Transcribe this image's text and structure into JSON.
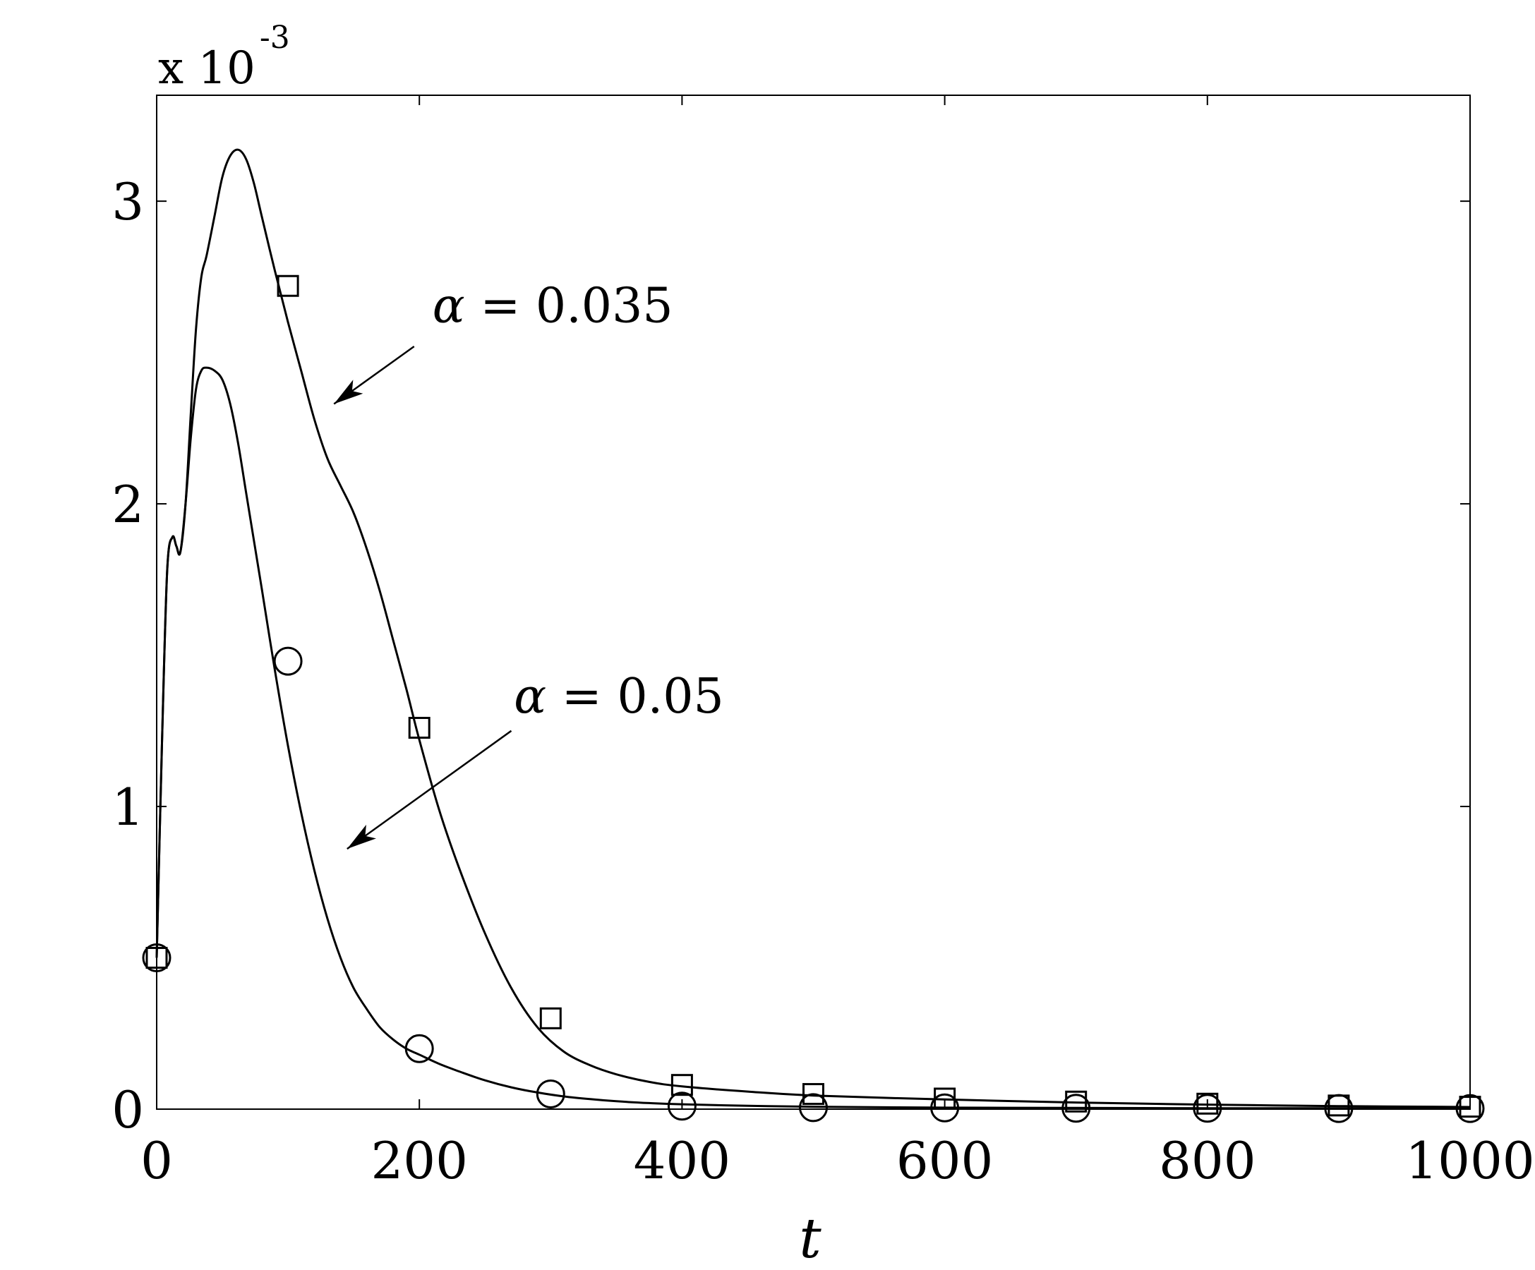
{
  "chart_data": {
    "type": "line",
    "xlabel": "t",
    "ylabel": "",
    "xlim": [
      0,
      1000
    ],
    "ylim": [
      0,
      3.35
    ],
    "y_scale_factor_text": {
      "base": "x 10",
      "exponent": "-3"
    },
    "x_ticks": [
      0,
      200,
      400,
      600,
      800,
      1000
    ],
    "x_tick_labels": [
      "0",
      "200",
      "400",
      "600",
      "800",
      "1000"
    ],
    "y_ticks": [
      0,
      1,
      2,
      3
    ],
    "y_tick_labels": [
      "0",
      "1",
      "2",
      "3"
    ],
    "grid": false,
    "series": [
      {
        "name": "α = 0.035",
        "marker": "square",
        "color": "#000000",
        "curve_x": [
          0,
          4,
          8,
          12,
          15,
          18,
          22,
          26,
          30,
          34,
          38,
          44,
          50,
          56,
          62,
          68,
          74,
          80,
          90,
          100,
          110,
          120,
          130,
          140,
          150,
          160,
          170,
          180,
          190,
          200,
          215,
          230,
          250,
          270,
          290,
          310,
          330,
          350,
          375,
          400,
          450,
          500,
          600,
          700,
          800,
          900,
          1000
        ],
        "curve_y": [
          0.5,
          1.2,
          1.78,
          1.89,
          1.86,
          1.84,
          2.0,
          2.3,
          2.58,
          2.75,
          2.82,
          2.95,
          3.08,
          3.15,
          3.17,
          3.14,
          3.06,
          2.95,
          2.77,
          2.6,
          2.44,
          2.28,
          2.15,
          2.06,
          1.97,
          1.85,
          1.71,
          1.55,
          1.39,
          1.22,
          0.99,
          0.8,
          0.58,
          0.4,
          0.27,
          0.19,
          0.145,
          0.115,
          0.09,
          0.075,
          0.058,
          0.045,
          0.032,
          0.022,
          0.015,
          0.01,
          0.007
        ],
        "marker_x": [
          0,
          100,
          200,
          300,
          400,
          500,
          600,
          700,
          800,
          900,
          1000
        ],
        "marker_y": [
          0.5,
          2.72,
          1.26,
          0.3,
          0.08,
          0.05,
          0.035,
          0.025,
          0.018,
          0.012,
          0.008
        ]
      },
      {
        "name": "α = 0.05",
        "marker": "circle",
        "color": "#000000",
        "curve_x": [
          0,
          4,
          8,
          12,
          15,
          18,
          22,
          26,
          30,
          34,
          38,
          44,
          50,
          56,
          62,
          68,
          74,
          80,
          90,
          100,
          110,
          120,
          130,
          140,
          150,
          160,
          170,
          180,
          190,
          200,
          215,
          230,
          250,
          270,
          290,
          310,
          330,
          350,
          375,
          400,
          450,
          500,
          600,
          700,
          800,
          900,
          1000
        ],
        "curve_y": [
          0.5,
          1.2,
          1.78,
          1.89,
          1.86,
          1.84,
          2.0,
          2.22,
          2.38,
          2.44,
          2.45,
          2.44,
          2.41,
          2.33,
          2.2,
          2.04,
          1.88,
          1.72,
          1.45,
          1.2,
          0.98,
          0.79,
          0.63,
          0.5,
          0.4,
          0.33,
          0.27,
          0.23,
          0.2,
          0.18,
          0.15,
          0.125,
          0.095,
          0.072,
          0.055,
          0.042,
          0.033,
          0.026,
          0.02,
          0.016,
          0.011,
          0.008,
          0.005,
          0.004,
          0.003,
          0.003,
          0.002
        ],
        "marker_x": [
          0,
          100,
          200,
          300,
          400,
          500,
          600,
          700,
          800,
          900,
          1000
        ],
        "marker_y": [
          0.5,
          1.48,
          0.2,
          0.05,
          0.01,
          0.005,
          0.004,
          0.003,
          0.003,
          0.002,
          0.002
        ]
      }
    ],
    "annotations": [
      {
        "greek": "α",
        "text": " = 0.035",
        "label_at": [
          210,
          2.6
        ],
        "arrow_from": [
          196,
          2.52
        ],
        "arrow_to": [
          135,
          2.33
        ]
      },
      {
        "greek": "α",
        "text": " = 0.05",
        "label_at": [
          272,
          1.31
        ],
        "arrow_from": [
          270,
          1.25
        ],
        "arrow_to": [
          145,
          0.86
        ]
      }
    ]
  }
}
